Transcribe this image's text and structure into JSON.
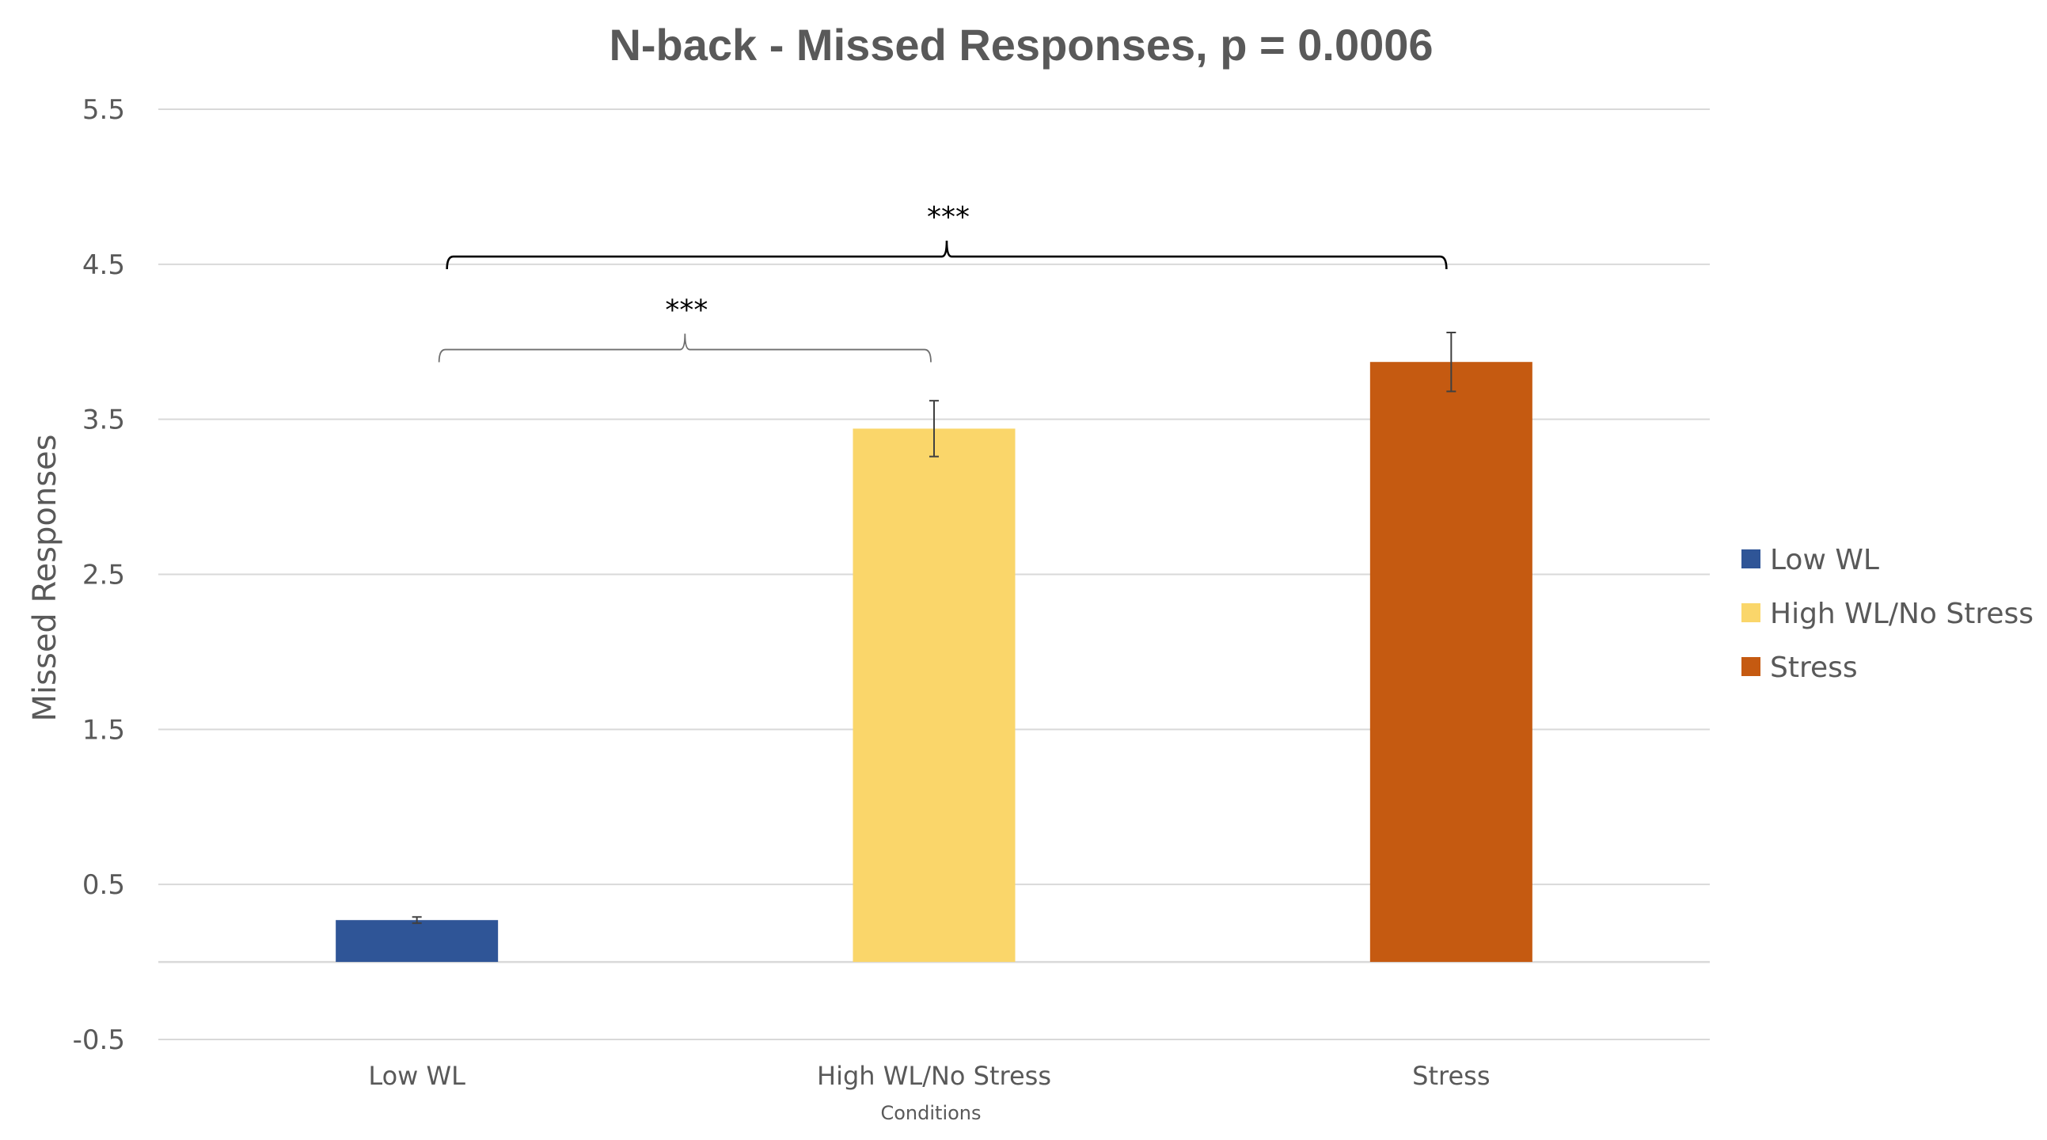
{
  "chart_data": {
    "type": "bar",
    "title": "N-back - Missed Responses, p = 0.0006",
    "xlabel": "Conditions",
    "ylabel": "Missed Responses",
    "categories": [
      "Low WL",
      "High WL/No Stress",
      "Stress"
    ],
    "values": [
      0.27,
      3.44,
      3.87
    ],
    "error": [
      0.02,
      0.18,
      0.19
    ],
    "colors": [
      "#2f5597",
      "#fad66a",
      "#c55a11"
    ],
    "ylim": [
      -0.5,
      5.5
    ],
    "yticks": [
      -0.5,
      0.5,
      1.5,
      2.5,
      3.5,
      4.5,
      5.5
    ],
    "ytick_labels": [
      "-0.5",
      "0.5",
      "1.5",
      "2.5",
      "3.5",
      "4.5",
      "5.5"
    ],
    "grid": true,
    "legend": {
      "placement": "right",
      "entries": [
        "Low WL",
        "High WL/No Stress",
        "Stress"
      ]
    },
    "annotations": [
      {
        "text": "***",
        "from": "Low WL",
        "to": "High WL/No Stress",
        "bracket_y": 3.95
      },
      {
        "text": "***",
        "from": "Low WL",
        "to": "Stress",
        "bracket_y": 4.55
      }
    ]
  }
}
